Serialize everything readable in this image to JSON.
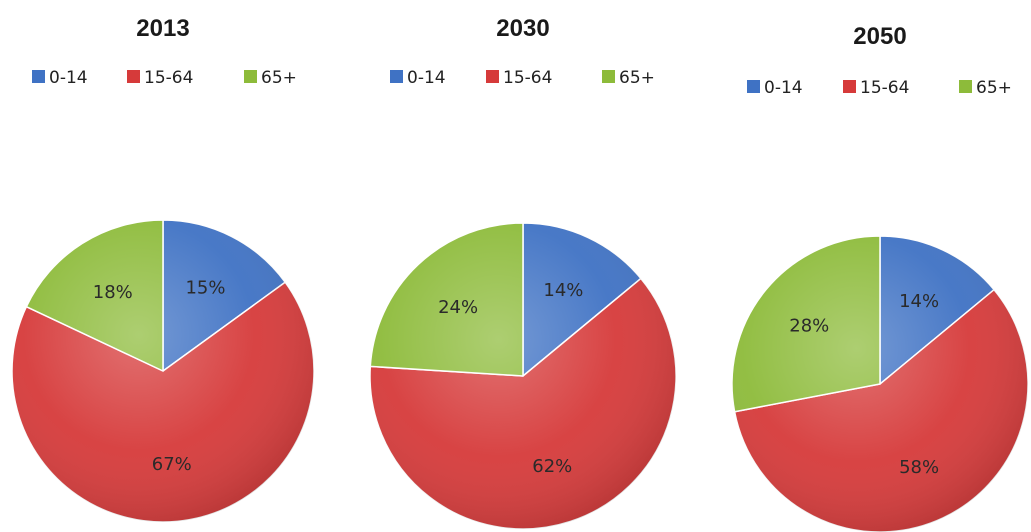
{
  "colors": {
    "0-14": "#3f72c4",
    "15-64": "#d63a3a",
    "65+": "#8dbb3a"
  },
  "legend_labels": [
    "0-14",
    "15-64",
    "65+"
  ],
  "chart_data": [
    {
      "type": "pie",
      "title": "2013",
      "categories": [
        "0-14",
        "15-64",
        "65+"
      ],
      "values": [
        15,
        67,
        18
      ],
      "labels": [
        "15%",
        "67%",
        "18%"
      ],
      "legend": "top"
    },
    {
      "type": "pie",
      "title": "2030",
      "categories": [
        "0-14",
        "15-64",
        "65+"
      ],
      "values": [
        14,
        62,
        24
      ],
      "labels": [
        "14%",
        "62%",
        "24%"
      ],
      "legend": "top"
    },
    {
      "type": "pie",
      "title": "2050",
      "categories": [
        "0-14",
        "15-64",
        "65+"
      ],
      "values": [
        14,
        58,
        28
      ],
      "labels": [
        "14%",
        "58%",
        "28%"
      ],
      "legend": "top"
    }
  ]
}
